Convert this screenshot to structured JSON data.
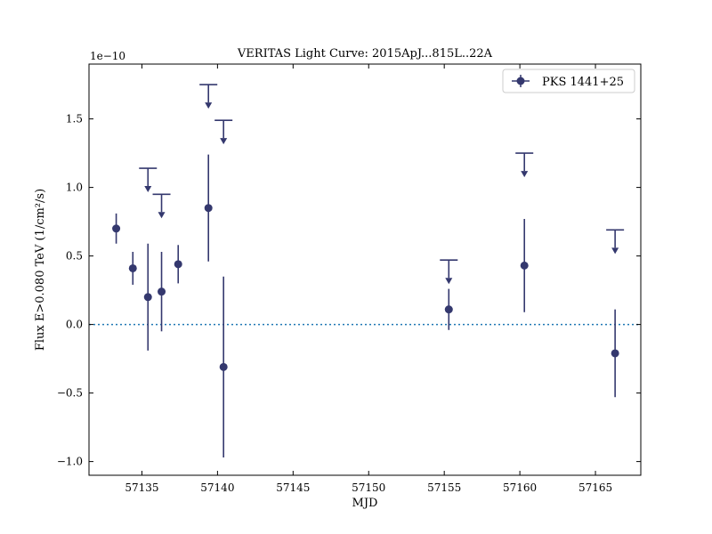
{
  "chart_data": {
    "type": "scatter",
    "title": "VERITAS Light Curve: 2015ApJ...815L..22A",
    "xlabel": "MJD",
    "ylabel": "Flux E>0.080 TeV (1/cm²/s)",
    "y_scale_label": "1e−10",
    "y_multiplier": 1e-10,
    "xlim": [
      57131.5,
      57168
    ],
    "ylim": [
      -1.1,
      1.9
    ],
    "x_ticks": [
      57135,
      57140,
      57145,
      57150,
      57155,
      57160,
      57165
    ],
    "x_tick_labels": [
      "57135",
      "57140",
      "57145",
      "57150",
      "57155",
      "57160",
      "57165"
    ],
    "y_ticks": [
      -1.0,
      -0.5,
      0.0,
      0.5,
      1.0,
      1.5
    ],
    "y_tick_labels": [
      "−1.0",
      "−0.5",
      "0.0",
      "0.5",
      "1.0",
      "1.5"
    ],
    "grid": false,
    "legend_position": "top-right",
    "zero_line": {
      "y": 0.0,
      "style": "dotted",
      "color": "#1f77b4"
    },
    "series": [
      {
        "name": "PKS 1441+25",
        "color": "#34386e",
        "points": [
          {
            "x": 57133.3,
            "y": 0.7,
            "yerr": 0.11
          },
          {
            "x": 57134.4,
            "y": 0.41,
            "yerr": 0.12
          },
          {
            "x": 57135.4,
            "y": 0.2,
            "yerr": 0.39
          },
          {
            "x": 57136.3,
            "y": 0.24,
            "yerr": 0.29
          },
          {
            "x": 57137.4,
            "y": 0.44,
            "yerr": 0.14
          },
          {
            "x": 57139.4,
            "y": 0.85,
            "yerr": 0.39
          },
          {
            "x": 57140.4,
            "y": -0.31,
            "yerr": 0.66
          },
          {
            "x": 57155.3,
            "y": 0.11,
            "yerr": 0.15
          },
          {
            "x": 57160.3,
            "y": 0.43,
            "yerr": 0.34
          },
          {
            "x": 57166.3,
            "y": -0.21,
            "yerr": 0.32
          }
        ],
        "upper_limits": [
          {
            "x": 57135.4,
            "y": 1.14
          },
          {
            "x": 57136.3,
            "y": 0.95
          },
          {
            "x": 57139.4,
            "y": 1.75
          },
          {
            "x": 57140.4,
            "y": 1.49
          },
          {
            "x": 57155.3,
            "y": 0.47
          },
          {
            "x": 57160.3,
            "y": 1.25
          },
          {
            "x": 57166.3,
            "y": 0.69
          }
        ]
      }
    ]
  }
}
